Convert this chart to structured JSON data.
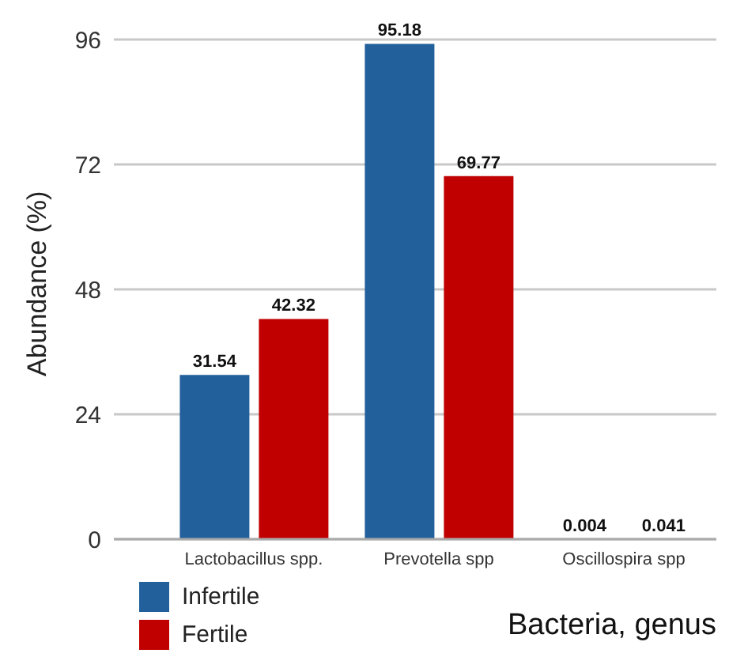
{
  "chart_data": {
    "type": "bar",
    "xlabel": "Bacteria, genus",
    "ylabel": "Abundance (%)",
    "categories": [
      "Lactobacillus spp.",
      "Prevotella spp",
      "Oscillospira spp"
    ],
    "series": [
      {
        "name": "Infertile",
        "color": "#22609c",
        "values": [
          31.54,
          95.18,
          0.004
        ]
      },
      {
        "name": "Fertile",
        "color": "#c00000",
        "values": [
          42.32,
          69.77,
          0.041
        ]
      }
    ],
    "ylim": [
      0,
      96
    ],
    "yticks": [
      0,
      24,
      48,
      72,
      96
    ],
    "grid": "y",
    "legend": "bottom left",
    "data_labels": true
  }
}
